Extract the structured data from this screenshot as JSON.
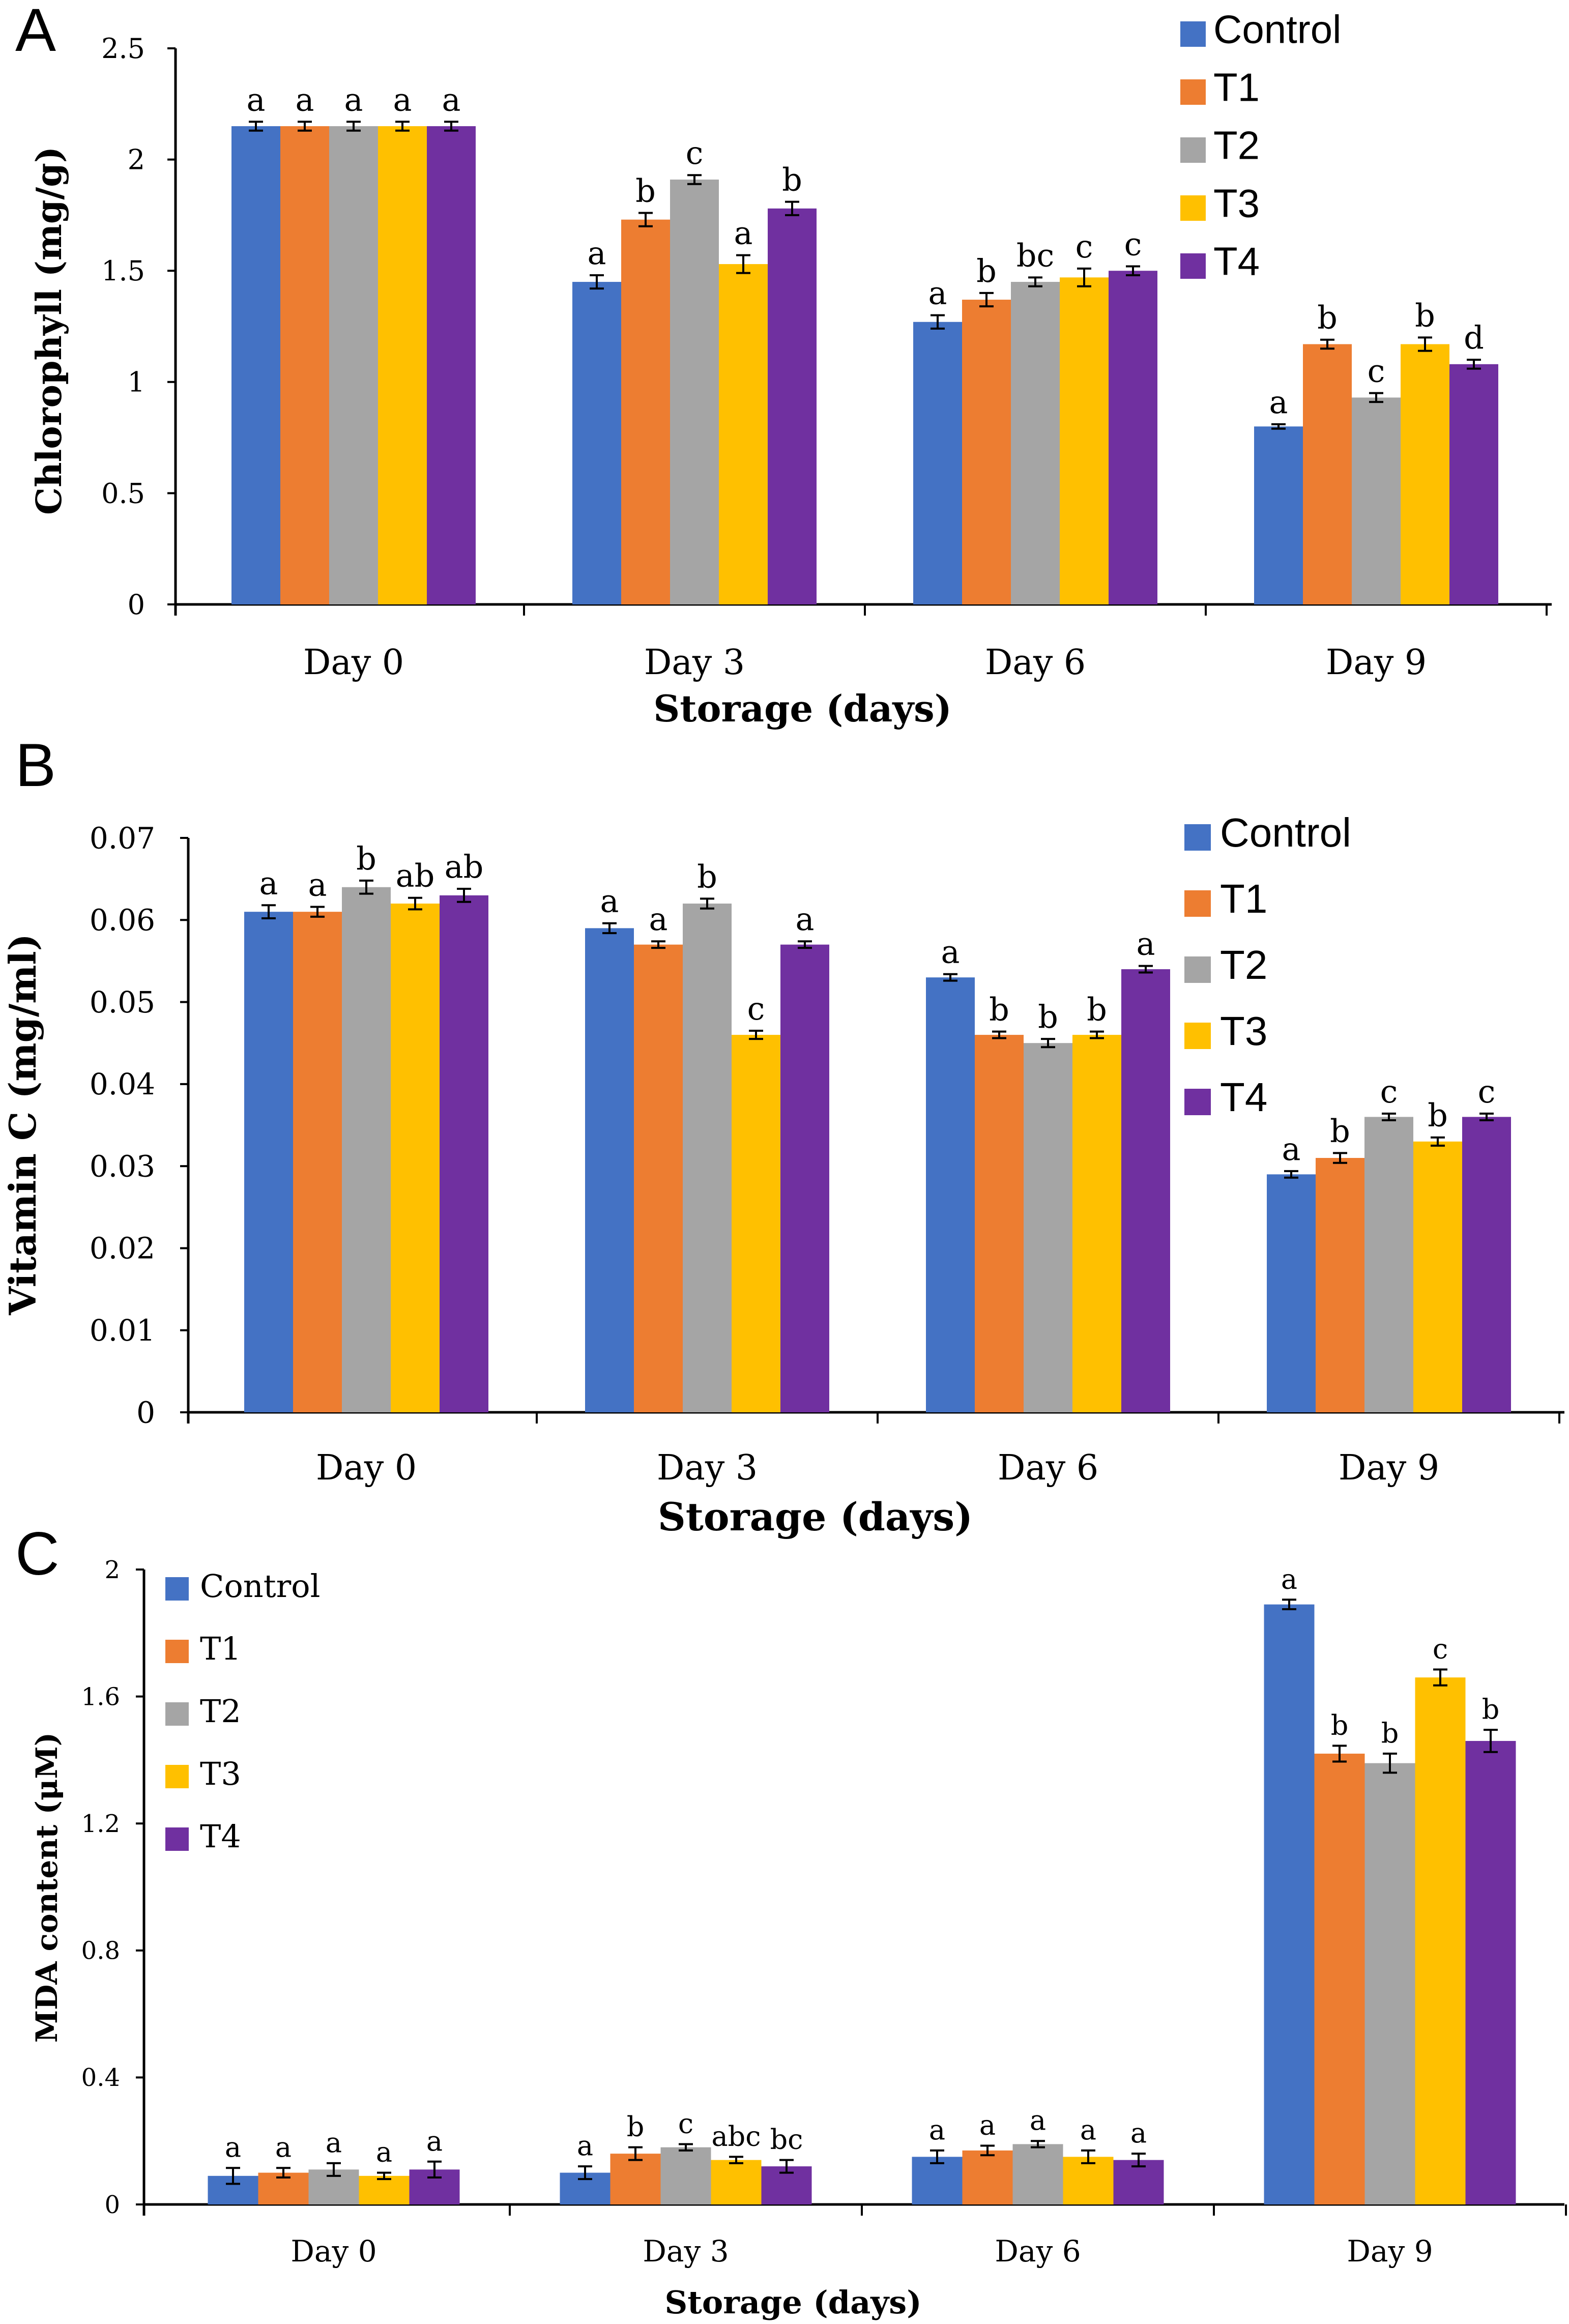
{
  "colors": {
    "Control": "#4472C4",
    "T1": "#ED7D31",
    "T2": "#A5A5A5",
    "T3": "#FFC000",
    "T4": "#7030A0",
    "axis": "#000000",
    "errorbar": "#000000"
  },
  "chart_data": [
    {
      "panel": "A",
      "type": "bar",
      "title": "",
      "xlabel": "Storage (days)",
      "ylabel": "Chlorophyll (mg/g)",
      "ylim": [
        0,
        2.5
      ],
      "yticks": [
        "0",
        "0.5",
        "1",
        "1.5",
        "2",
        "2.5"
      ],
      "ytick_values": [
        0,
        0.5,
        1,
        1.5,
        2,
        2.5
      ],
      "grid": false,
      "legend_position": "top-right",
      "categories": [
        "Day 0",
        "Day 3",
        "Day 6",
        "Day 9"
      ],
      "series": [
        {
          "name": "Control",
          "values": [
            2.15,
            1.45,
            1.27,
            0.8
          ],
          "errors": [
            0.02,
            0.03,
            0.03,
            0.01
          ],
          "letters": [
            "a",
            "a",
            "a",
            "a"
          ]
        },
        {
          "name": "T1",
          "values": [
            2.15,
            1.73,
            1.37,
            1.17
          ],
          "errors": [
            0.02,
            0.03,
            0.03,
            0.02
          ],
          "letters": [
            "a",
            "b",
            "b",
            "b"
          ]
        },
        {
          "name": "T2",
          "values": [
            2.15,
            1.91,
            1.45,
            0.93
          ],
          "errors": [
            0.02,
            0.02,
            0.02,
            0.02
          ],
          "letters": [
            "a",
            "c",
            "bc",
            "c"
          ]
        },
        {
          "name": "T3",
          "values": [
            2.15,
            1.53,
            1.47,
            1.17
          ],
          "errors": [
            0.02,
            0.04,
            0.04,
            0.03
          ],
          "letters": [
            "a",
            "a",
            "c",
            "b"
          ]
        },
        {
          "name": "T4",
          "values": [
            2.15,
            1.78,
            1.5,
            1.08
          ],
          "errors": [
            0.02,
            0.03,
            0.02,
            0.02
          ],
          "letters": [
            "a",
            "b",
            "c",
            "d"
          ]
        }
      ]
    },
    {
      "panel": "B",
      "type": "bar",
      "title": "",
      "xlabel": "Storage (days)",
      "ylabel": "Vitamin C (mg/ml)",
      "ylim": [
        0,
        0.07
      ],
      "yticks": [
        "0",
        "0.01",
        "0.02",
        "0.03",
        "0.04",
        "0.05",
        "0.06",
        "0.07"
      ],
      "ytick_values": [
        0,
        0.01,
        0.02,
        0.03,
        0.04,
        0.05,
        0.06,
        0.07
      ],
      "grid": false,
      "legend_position": "top-right",
      "categories": [
        "Day 0",
        "Day 3",
        "Day 6",
        "Day 9"
      ],
      "series": [
        {
          "name": "Control",
          "values": [
            0.061,
            0.059,
            0.053,
            0.029
          ],
          "errors": [
            0.0008,
            0.0006,
            0.0004,
            0.0004
          ],
          "letters": [
            "a",
            "a",
            "a",
            "a"
          ]
        },
        {
          "name": "T1",
          "values": [
            0.061,
            0.057,
            0.046,
            0.031
          ],
          "errors": [
            0.0006,
            0.0004,
            0.0004,
            0.0006
          ],
          "letters": [
            "a",
            "a",
            "b",
            "b"
          ]
        },
        {
          "name": "T2",
          "values": [
            0.064,
            0.062,
            0.045,
            0.036
          ],
          "errors": [
            0.0008,
            0.0006,
            0.0005,
            0.0004
          ],
          "letters": [
            "b",
            "b",
            "b",
            "c"
          ]
        },
        {
          "name": "T3",
          "values": [
            0.062,
            0.046,
            0.046,
            0.033
          ],
          "errors": [
            0.0007,
            0.0005,
            0.0004,
            0.0005
          ],
          "letters": [
            "ab",
            "c",
            "b",
            "b"
          ]
        },
        {
          "name": "T4",
          "values": [
            0.063,
            0.057,
            0.054,
            0.036
          ],
          "errors": [
            0.0008,
            0.0004,
            0.0004,
            0.0004
          ],
          "letters": [
            "ab",
            "a",
            "a",
            "c"
          ]
        }
      ]
    },
    {
      "panel": "C",
      "type": "bar",
      "title": "",
      "xlabel": "Storage (days)",
      "ylabel": "MDA content (μM)",
      "ylim": [
        0,
        2
      ],
      "yticks": [
        "0",
        "0.4",
        "0.8",
        "1.2",
        "1.6",
        "2"
      ],
      "ytick_values": [
        0,
        0.4,
        0.8,
        1.2,
        1.6,
        2
      ],
      "grid": false,
      "legend_position": "top-left",
      "categories": [
        "Day 0",
        "Day 3",
        "Day 6",
        "Day 9"
      ],
      "series": [
        {
          "name": "Control",
          "values": [
            0.09,
            0.1,
            0.15,
            1.89
          ],
          "errors": [
            0.025,
            0.02,
            0.02,
            0.015
          ],
          "letters": [
            "a",
            "a",
            "a",
            "a"
          ]
        },
        {
          "name": "T1",
          "values": [
            0.1,
            0.16,
            0.17,
            1.42
          ],
          "errors": [
            0.015,
            0.02,
            0.015,
            0.025
          ],
          "letters": [
            "a",
            "b",
            "a",
            "b"
          ]
        },
        {
          "name": "T2",
          "values": [
            0.11,
            0.18,
            0.19,
            1.39
          ],
          "errors": [
            0.02,
            0.01,
            0.01,
            0.03
          ],
          "letters": [
            "a",
            "c",
            "a",
            "b"
          ]
        },
        {
          "name": "T3",
          "values": [
            0.09,
            0.14,
            0.15,
            1.66
          ],
          "errors": [
            0.01,
            0.01,
            0.02,
            0.025
          ],
          "letters": [
            "a",
            "abc",
            "a",
            "c"
          ]
        },
        {
          "name": "T4",
          "values": [
            0.11,
            0.12,
            0.14,
            1.46
          ],
          "errors": [
            0.025,
            0.02,
            0.02,
            0.035
          ],
          "letters": [
            "a",
            "bc",
            "a",
            "b"
          ]
        }
      ]
    }
  ]
}
